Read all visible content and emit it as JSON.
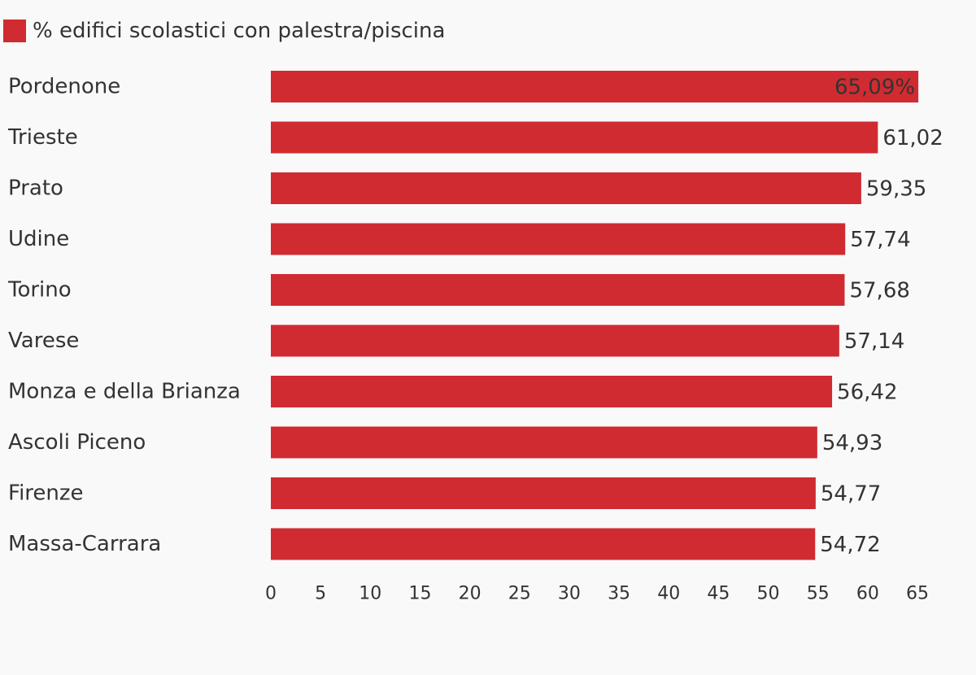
{
  "legend": {
    "label": "% edifici scolastici con palestra/piscina",
    "color": "#d02b31"
  },
  "chart_data": {
    "type": "bar",
    "orientation": "horizontal",
    "title": "",
    "xlabel": "",
    "ylabel": "",
    "series": [
      {
        "name": "% edifici scolastici con palestra/piscina",
        "values": [
          65.09,
          61.02,
          59.35,
          57.74,
          57.68,
          57.14,
          56.42,
          54.93,
          54.77,
          54.72
        ]
      }
    ],
    "categories": [
      "Pordenone",
      "Trieste",
      "Prato",
      "Udine",
      "Torino",
      "Varese",
      "Monza e della Brianza",
      "Ascoli Piceno",
      "Firenze",
      "Massa-Carrara"
    ],
    "value_labels": [
      "65,09%",
      "61,02",
      "59,35",
      "57,74",
      "57,68",
      "57,14",
      "56,42",
      "54,93",
      "54,77",
      "54,72"
    ],
    "xlim": [
      0,
      65
    ],
    "x_ticks": [
      "0",
      "5",
      "10",
      "15",
      "20",
      "25",
      "30",
      "35",
      "40",
      "45",
      "50",
      "55",
      "60",
      "65"
    ],
    "grid": false,
    "legend_position": "top-left",
    "bar_color": "#d02b31"
  }
}
